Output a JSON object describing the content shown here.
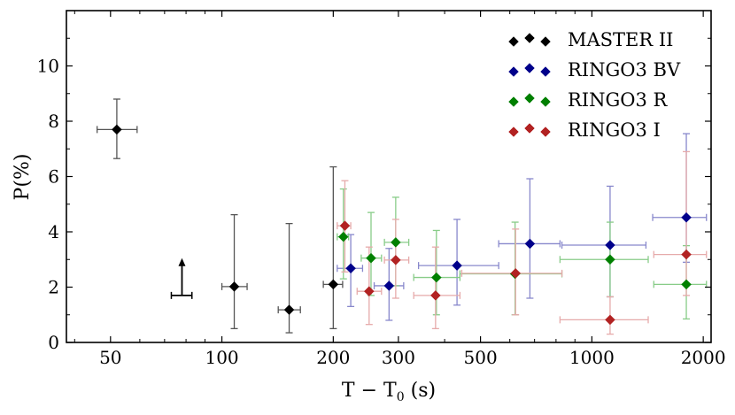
{
  "chart_data": {
    "type": "scatter",
    "title": "",
    "xlabel": "T − T",
    "xlabel_subscript": "0",
    "xlabel_unit": " (s)",
    "ylabel": "P(%)",
    "xscale": "log",
    "xlim": [
      38,
      2100
    ],
    "ylim": [
      0,
      12
    ],
    "xticks": [
      50,
      100,
      200,
      300,
      500,
      1000,
      2000
    ],
    "yticks": [
      0,
      2,
      4,
      6,
      8,
      10
    ],
    "legend_position": "top-right",
    "series": [
      {
        "name": "MASTER II",
        "color": "#000000",
        "errcolor": "#555555",
        "points": [
          {
            "x": 52,
            "xlo": 46,
            "xhi": 59,
            "y": 7.7,
            "ylo": 6.65,
            "yhi": 8.8
          },
          {
            "x": 108,
            "xlo": 100,
            "xhi": 117,
            "y": 2.02,
            "ylo": 0.5,
            "yhi": 4.62
          },
          {
            "x": 152,
            "xlo": 142,
            "xhi": 163,
            "y": 1.18,
            "ylo": 0.35,
            "yhi": 4.3
          },
          {
            "x": 200,
            "xlo": 188,
            "xhi": 212,
            "y": 2.1,
            "ylo": 0.5,
            "yhi": 6.35
          }
        ],
        "upper_limit": {
          "x": 78,
          "xlo": 73,
          "xhi": 83,
          "y": 1.7,
          "arrow_to": 3.05
        }
      },
      {
        "name": "RINGO3 BV",
        "color": "#00008b",
        "errcolor": "#8888cc",
        "points": [
          {
            "x": 223,
            "xlo": 205,
            "xhi": 240,
            "y": 2.68,
            "ylo": 1.3,
            "yhi": 3.9
          },
          {
            "x": 283,
            "xlo": 258,
            "xhi": 310,
            "y": 2.05,
            "ylo": 0.8,
            "yhi": 3.4
          },
          {
            "x": 432,
            "xlo": 340,
            "xhi": 560,
            "y": 2.78,
            "ylo": 1.35,
            "yhi": 4.45
          },
          {
            "x": 680,
            "xlo": 560,
            "xhi": 820,
            "y": 3.57,
            "ylo": 1.6,
            "yhi": 5.92
          },
          {
            "x": 1120,
            "xlo": 830,
            "xhi": 1400,
            "y": 3.52,
            "ylo": 1.65,
            "yhi": 5.65
          },
          {
            "x": 1800,
            "xlo": 1460,
            "xhi": 2040,
            "y": 4.52,
            "ylo": 2.9,
            "yhi": 7.55
          }
        ]
      },
      {
        "name": "RINGO3 R",
        "color": "#008000",
        "errcolor": "#88cc88",
        "points": [
          {
            "x": 213,
            "xlo": 205,
            "xhi": 220,
            "y": 3.82,
            "ylo": 2.3,
            "yhi": 5.55
          },
          {
            "x": 253,
            "xlo": 238,
            "xhi": 270,
            "y": 3.05,
            "ylo": 1.7,
            "yhi": 4.7
          },
          {
            "x": 295,
            "xlo": 275,
            "xhi": 320,
            "y": 3.62,
            "ylo": 2.05,
            "yhi": 5.25
          },
          {
            "x": 380,
            "xlo": 330,
            "xhi": 440,
            "y": 2.35,
            "ylo": 1.0,
            "yhi": 4.05
          },
          {
            "x": 620,
            "xlo": 440,
            "xhi": 830,
            "y": 2.48,
            "ylo": 1.0,
            "yhi": 4.35
          },
          {
            "x": 1120,
            "xlo": 820,
            "xhi": 1420,
            "y": 3.0,
            "ylo": 1.65,
            "yhi": 4.35
          },
          {
            "x": 1800,
            "xlo": 1470,
            "xhi": 2040,
            "y": 2.1,
            "ylo": 0.85,
            "yhi": 3.5
          }
        ]
      },
      {
        "name": "RINGO3 I",
        "color": "#b22222",
        "errcolor": "#e6aaaa",
        "points": [
          {
            "x": 215,
            "xlo": 205,
            "xhi": 223,
            "y": 4.22,
            "ylo": 2.55,
            "yhi": 5.85
          },
          {
            "x": 250,
            "xlo": 232,
            "xhi": 270,
            "y": 1.85,
            "ylo": 0.65,
            "yhi": 3.45
          },
          {
            "x": 295,
            "xlo": 275,
            "xhi": 320,
            "y": 2.98,
            "ylo": 1.6,
            "yhi": 4.45
          },
          {
            "x": 378,
            "xlo": 330,
            "xhi": 440,
            "y": 1.7,
            "ylo": 0.5,
            "yhi": 3.45
          },
          {
            "x": 622,
            "xlo": 445,
            "xhi": 830,
            "y": 2.5,
            "ylo": 1.0,
            "yhi": 4.1
          },
          {
            "x": 1120,
            "xlo": 820,
            "xhi": 1420,
            "y": 0.82,
            "ylo": 0.3,
            "yhi": 1.65
          },
          {
            "x": 1800,
            "xlo": 1470,
            "xhi": 2040,
            "y": 3.18,
            "ylo": 1.7,
            "yhi": 6.9
          }
        ]
      }
    ]
  }
}
